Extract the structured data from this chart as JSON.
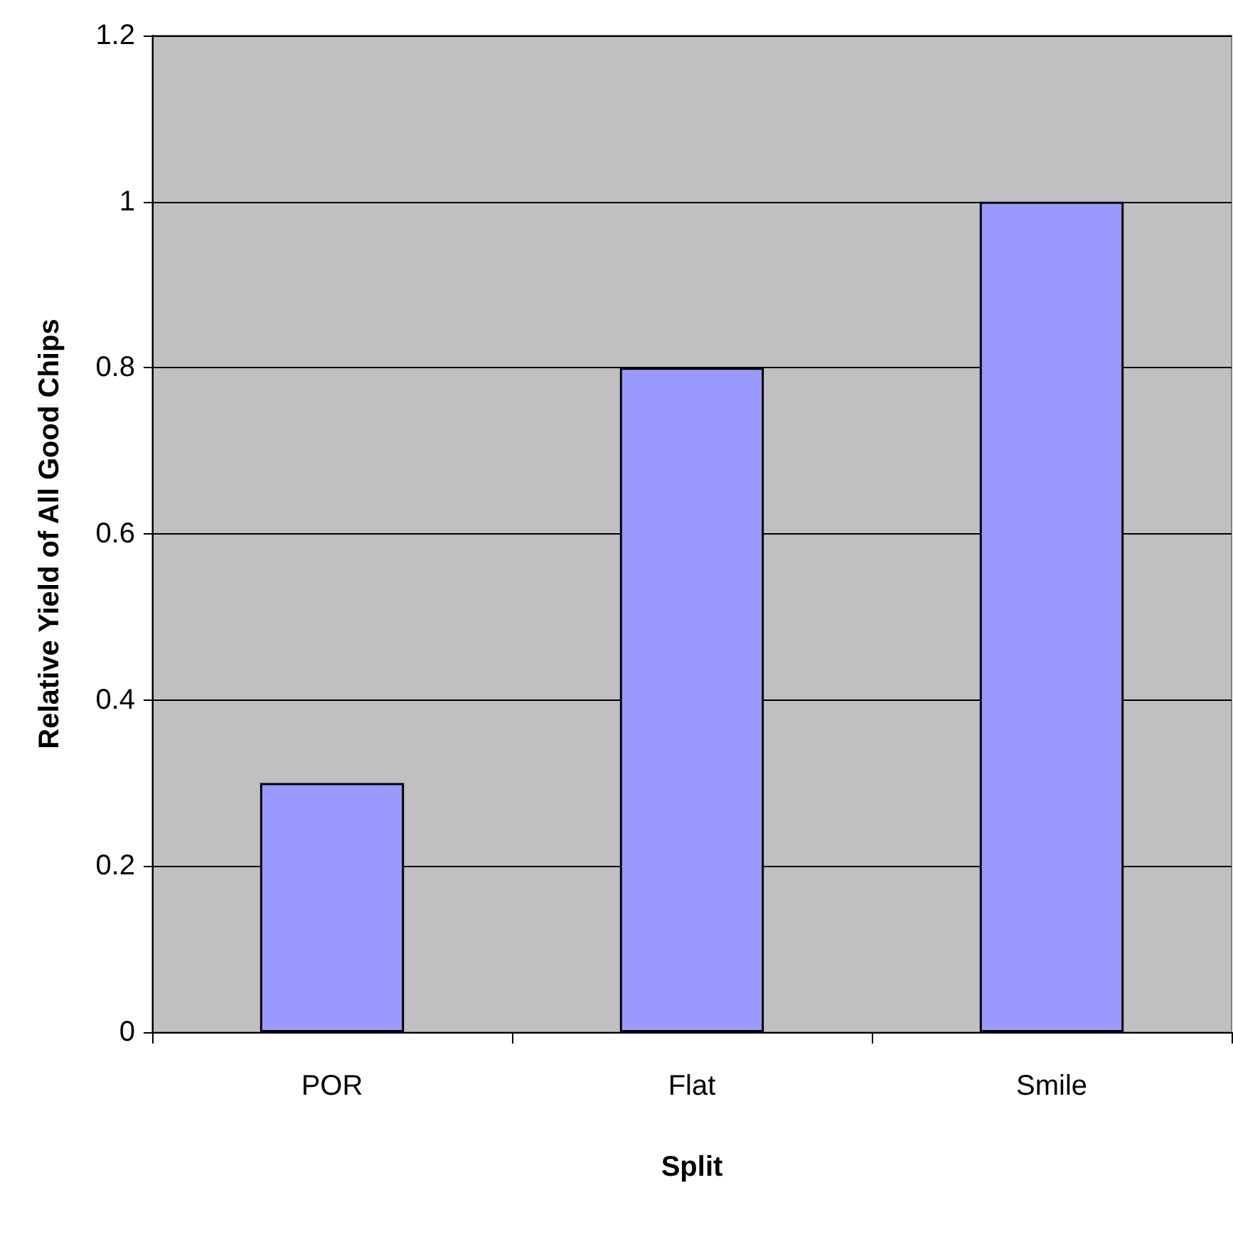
{
  "chart_data": {
    "type": "bar",
    "xlabel": "Split",
    "ylabel": "Relative Yield of All Good Chips",
    "categories": [
      "POR",
      "Flat",
      "Smile"
    ],
    "values": [
      0.3,
      0.8,
      1.0
    ],
    "color": "#9999ff",
    "ylim": [
      0,
      1.2
    ],
    "yticks": [
      0,
      0.2,
      0.4,
      0.6,
      0.8,
      1,
      1.2
    ],
    "grid": true
  }
}
